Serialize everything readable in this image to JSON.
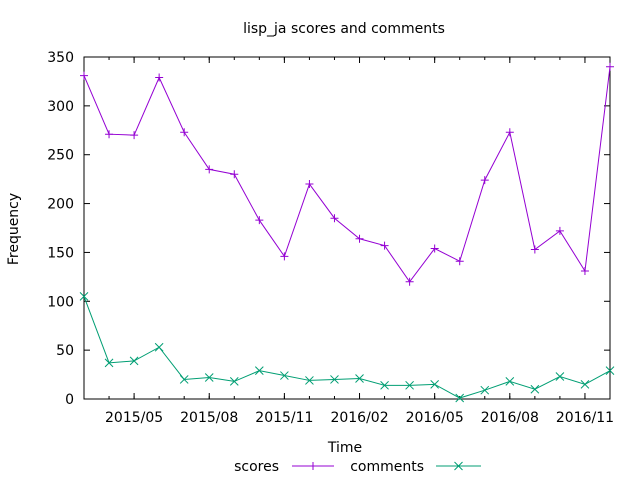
{
  "chart_data": {
    "type": "line",
    "title": "lisp_ja scores and comments",
    "xlabel": "Time",
    "ylabel": "Frequency",
    "ylim": [
      0,
      350
    ],
    "yticks": [
      0,
      50,
      100,
      150,
      200,
      250,
      300,
      350
    ],
    "xlim": [
      "2015-03",
      "2016-12"
    ],
    "xticks": [
      {
        "value": "2015-05",
        "label": "2015/05"
      },
      {
        "value": "2015-08",
        "label": "2015/08"
      },
      {
        "value": "2015-11",
        "label": "2015/11"
      },
      {
        "value": "2016-02",
        "label": "2016/02"
      },
      {
        "value": "2016-05",
        "label": "2016/05"
      },
      {
        "value": "2016-08",
        "label": "2016/08"
      },
      {
        "value": "2016-11",
        "label": "2016/11"
      }
    ],
    "x": [
      "2015-03",
      "2015-04",
      "2015-05",
      "2015-06",
      "2015-07",
      "2015-08",
      "2015-09",
      "2015-10",
      "2015-11",
      "2015-12",
      "2016-01",
      "2016-02",
      "2016-03",
      "2016-04",
      "2016-05",
      "2016-06",
      "2016-07",
      "2016-08",
      "2016-09",
      "2016-10",
      "2016-11",
      "2016-12"
    ],
    "series": [
      {
        "name": "scores",
        "color": "#9400d3",
        "marker": "plus",
        "values": [
          331,
          271,
          270,
          329,
          273,
          235,
          230,
          183,
          146,
          220,
          185,
          164,
          157,
          120,
          154,
          141,
          224,
          273,
          153,
          172,
          131,
          340
        ]
      },
      {
        "name": "comments",
        "color": "#009e73",
        "marker": "cross",
        "values": [
          105,
          37,
          39,
          53,
          20,
          22,
          18,
          29,
          24,
          19,
          20,
          21,
          14,
          14,
          15,
          1,
          9,
          18,
          10,
          23,
          15,
          29
        ]
      }
    ],
    "legend_position": "bottom-center",
    "grid": false
  }
}
